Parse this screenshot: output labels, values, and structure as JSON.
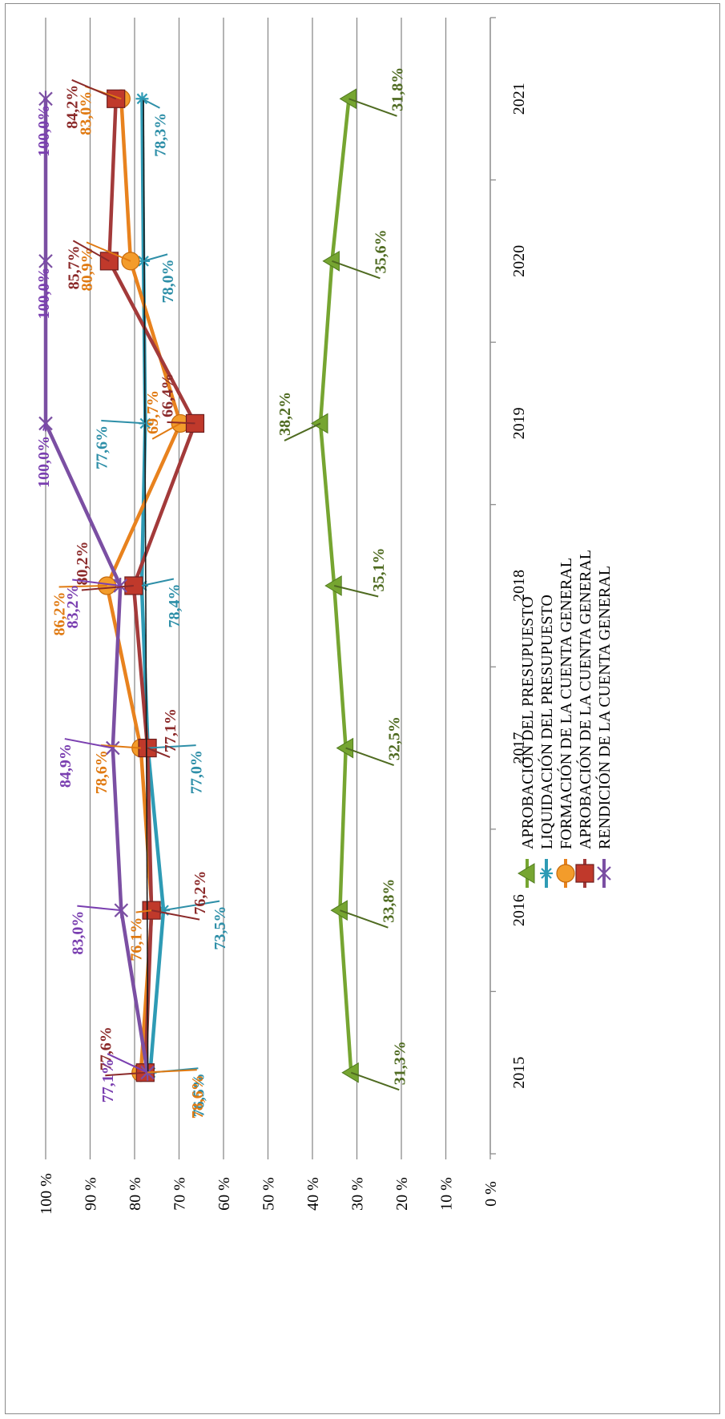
{
  "chart_data": {
    "type": "line",
    "x": [
      "2015",
      "2016",
      "2017",
      "2018",
      "2019",
      "2020",
      "2021"
    ],
    "ylim": [
      0,
      100
    ],
    "ytick_labels": [
      "0 %",
      "10 %",
      "20 %",
      "30 %",
      "40 %",
      "50 %",
      "60 %",
      "70 %",
      "80 %",
      "90 %",
      "100 %"
    ],
    "grid": true,
    "legend_position": "bottom",
    "series": [
      {
        "name": "APROBACIÓN DEL PRESUPUESTO",
        "color": "#76a531",
        "label_color": "#4f6b21",
        "marker": "triangle",
        "values": [
          31.3,
          33.8,
          32.5,
          35.1,
          38.2,
          35.6,
          31.8
        ],
        "labels": [
          "31,3%",
          "33,8%",
          "32,5%",
          "35,1%",
          "38,2%",
          "35,6%",
          "31,8%"
        ]
      },
      {
        "name": "LIQUIDACIÓN DEL PRESUPUESTO",
        "color": "#2e9bb5",
        "label_color": "#2e8fa8",
        "marker": "star",
        "values": [
          76.5,
          73.5,
          77.0,
          78.4,
          77.6,
          78.0,
          78.3
        ],
        "labels": [
          "76,5%",
          "73,5%",
          "77,0%",
          "78,4%",
          "77,6%",
          "78,0%",
          "78,3%"
        ]
      },
      {
        "name": "FORMACIÓN DE LA CUENTA GENERAL",
        "color": "#e8821e",
        "label_color": "#e07a12",
        "marker": "circle",
        "values": [
          78.6,
          76.1,
          78.6,
          86.2,
          69.7,
          80.9,
          83.0
        ],
        "labels": [
          "78,6%",
          "76,1%",
          "78,6%",
          "86,2%",
          "69,7%",
          "80,9%",
          "83,0%"
        ]
      },
      {
        "name": "APROBACIÓN DE LA CUENTA GENERAL",
        "color": "#a33a3a",
        "label_color": "#8b2a2a",
        "marker": "square",
        "values": [
          77.6,
          76.2,
          77.1,
          80.2,
          66.4,
          85.7,
          84.2
        ],
        "labels": [
          "77,6%",
          "76,2%",
          "77,1%",
          "80,2%",
          "66,4%",
          "85,7%",
          "84,2%"
        ]
      },
      {
        "name": "RENDICIÓN DE LA CUENTA GENERAL",
        "color": "#7b4fa3",
        "label_color": "#7a3fb0",
        "marker": "x",
        "values": [
          77.1,
          83.0,
          84.9,
          83.2,
          100.0,
          100.0,
          100.0
        ],
        "labels": [
          "77,1%",
          "83,0%",
          "84,9%",
          "83,2%",
          "100,0%",
          "100,0%",
          "100,0%"
        ]
      }
    ],
    "trendline": {
      "color": "#1a1a1a",
      "from": 77.0,
      "to": 78.0
    }
  }
}
